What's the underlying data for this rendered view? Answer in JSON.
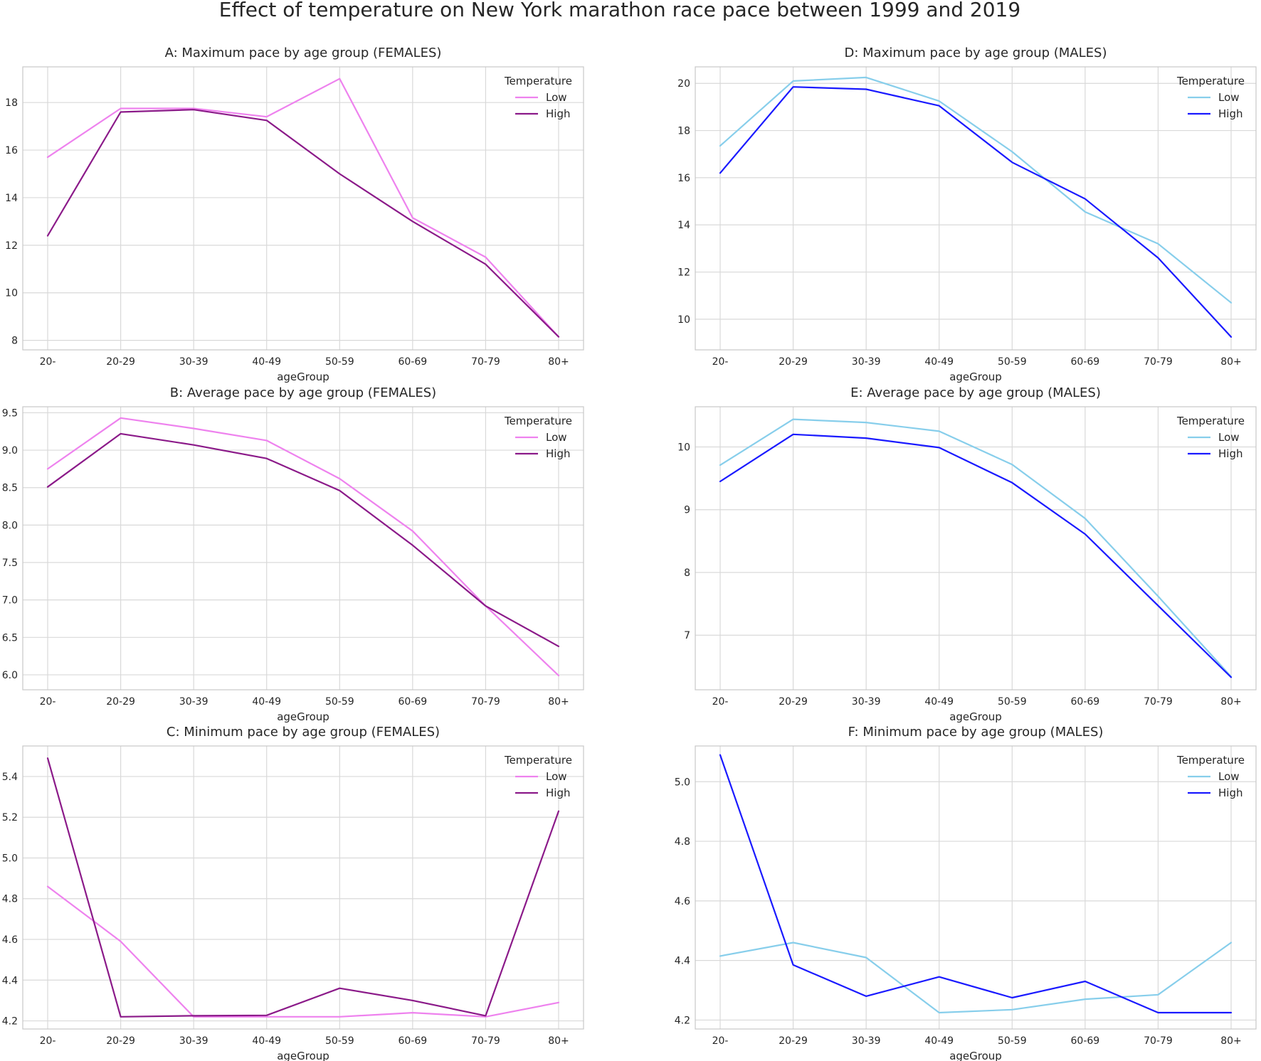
{
  "figure_title": "Effect of temperature on New York marathon race pace between 1999 and 2019",
  "legend_title": "Temperature",
  "chart_data": [
    {
      "id": "A",
      "type": "line",
      "title": "A: Maximum pace by age group (FEMALES)",
      "xlabel": "ageGroup",
      "ylabel": "",
      "categories": [
        "20-",
        "20-29",
        "30-39",
        "40-49",
        "50-59",
        "60-69",
        "70-79",
        "80+"
      ],
      "ylim": [
        7.6,
        19.5
      ],
      "yticks": [
        8,
        10,
        12,
        14,
        16,
        18
      ],
      "ytick_labels": [
        "8",
        "10",
        "12",
        "14",
        "16",
        "18"
      ],
      "legend_position": "top-right",
      "series": [
        {
          "name": "Low",
          "color": "#ee82ee",
          "values": [
            15.7,
            17.75,
            17.75,
            17.4,
            19.0,
            13.15,
            11.5,
            8.15
          ]
        },
        {
          "name": "High",
          "color": "#8b1a89",
          "values": [
            12.4,
            17.6,
            17.7,
            17.25,
            15.0,
            13.0,
            11.2,
            8.15
          ]
        }
      ]
    },
    {
      "id": "D",
      "type": "line",
      "title": "D: Maximum pace by age group (MALES)",
      "xlabel": "ageGroup",
      "ylabel": "",
      "categories": [
        "20-",
        "20-29",
        "30-39",
        "40-49",
        "50-59",
        "60-69",
        "70-79",
        "80+"
      ],
      "ylim": [
        8.7,
        20.7
      ],
      "yticks": [
        10,
        12,
        14,
        16,
        18,
        20
      ],
      "ytick_labels": [
        "10",
        "12",
        "14",
        "16",
        "18",
        "20"
      ],
      "legend_position": "top-right",
      "series": [
        {
          "name": "Low",
          "color": "#87ceeb",
          "values": [
            17.35,
            20.1,
            20.25,
            19.25,
            17.1,
            14.55,
            13.2,
            10.7
          ]
        },
        {
          "name": "High",
          "color": "#1a1aff",
          "values": [
            16.2,
            19.85,
            19.75,
            19.05,
            16.65,
            15.1,
            12.6,
            9.25
          ]
        }
      ]
    },
    {
      "id": "B",
      "type": "line",
      "title": "B: Average pace by age group (FEMALES)",
      "xlabel": "ageGroup",
      "ylabel": "",
      "categories": [
        "20-",
        "20-29",
        "30-39",
        "40-49",
        "50-59",
        "60-69",
        "70-79",
        "80+"
      ],
      "ylim": [
        5.8,
        9.58
      ],
      "yticks": [
        6.0,
        6.5,
        7.0,
        7.5,
        8.0,
        8.5,
        9.0,
        9.5
      ],
      "ytick_labels": [
        "6.0",
        "6.5",
        "7.0",
        "7.5",
        "8.0",
        "8.5",
        "9.0",
        "9.5"
      ],
      "legend_position": "top-right",
      "series": [
        {
          "name": "Low",
          "color": "#ee82ee",
          "values": [
            8.75,
            9.43,
            9.29,
            9.13,
            8.62,
            7.92,
            6.92,
            5.99
          ]
        },
        {
          "name": "High",
          "color": "#8b1a89",
          "values": [
            8.51,
            9.22,
            9.07,
            8.89,
            8.46,
            7.73,
            6.92,
            6.38
          ]
        }
      ]
    },
    {
      "id": "E",
      "type": "line",
      "title": "E: Average pace by age group (MALES)",
      "xlabel": "ageGroup",
      "ylabel": "",
      "categories": [
        "20-",
        "20-29",
        "30-39",
        "40-49",
        "50-59",
        "60-69",
        "70-79",
        "80+"
      ],
      "ylim": [
        6.13,
        10.64
      ],
      "yticks": [
        7,
        8,
        9,
        10
      ],
      "ytick_labels": [
        "7",
        "8",
        "9",
        "10"
      ],
      "legend_position": "top-right",
      "series": [
        {
          "name": "Low",
          "color": "#87ceeb",
          "values": [
            9.71,
            10.44,
            10.39,
            10.25,
            9.72,
            8.86,
            7.62,
            6.34
          ]
        },
        {
          "name": "High",
          "color": "#1a1aff",
          "values": [
            9.45,
            10.2,
            10.14,
            9.99,
            9.43,
            8.61,
            7.47,
            6.33
          ]
        }
      ]
    },
    {
      "id": "C",
      "type": "line",
      "title": "C: Minimum pace by age group (FEMALES)",
      "xlabel": "ageGroup",
      "ylabel": "",
      "categories": [
        "20-",
        "20-29",
        "30-39",
        "40-49",
        "50-59",
        "60-69",
        "70-79",
        "80+"
      ],
      "ylim": [
        4.16,
        5.55
      ],
      "yticks": [
        4.2,
        4.4,
        4.6,
        4.8,
        5.0,
        5.2,
        5.4
      ],
      "ytick_labels": [
        "4.2",
        "4.4",
        "4.6",
        "4.8",
        "5.0",
        "5.2",
        "5.4"
      ],
      "legend_position": "top-right",
      "series": [
        {
          "name": "Low",
          "color": "#ee82ee",
          "values": [
            4.86,
            4.59,
            4.22,
            4.22,
            4.22,
            4.24,
            4.22,
            4.29
          ]
        },
        {
          "name": "High",
          "color": "#8b1a89",
          "values": [
            5.49,
            4.22,
            4.225,
            4.227,
            4.36,
            4.3,
            4.225,
            5.23
          ]
        }
      ]
    },
    {
      "id": "F",
      "type": "line",
      "title": "F: Minimum pace by age group (MALES)",
      "xlabel": "ageGroup",
      "ylabel": "",
      "categories": [
        "20-",
        "20-29",
        "30-39",
        "40-49",
        "50-59",
        "60-69",
        "70-79",
        "80+"
      ],
      "ylim": [
        4.17,
        5.12
      ],
      "yticks": [
        4.2,
        4.4,
        4.6,
        4.8,
        5.0
      ],
      "ytick_labels": [
        "4.2",
        "4.4",
        "4.6",
        "4.8",
        "5.0"
      ],
      "legend_position": "top-right",
      "series": [
        {
          "name": "Low",
          "color": "#87ceeb",
          "values": [
            4.415,
            4.46,
            4.41,
            4.225,
            4.235,
            4.27,
            4.285,
            4.46
          ]
        },
        {
          "name": "High",
          "color": "#1a1aff",
          "values": [
            5.09,
            4.385,
            4.28,
            4.345,
            4.275,
            4.33,
            4.225,
            4.225
          ]
        }
      ]
    }
  ]
}
